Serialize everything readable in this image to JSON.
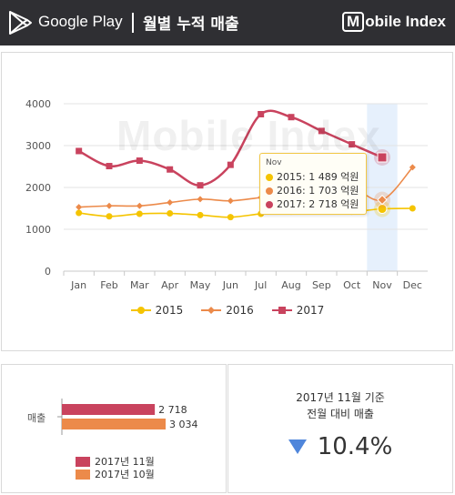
{
  "header": {
    "store": "Google Play",
    "title": "월별 누적 매출",
    "brand": "Mobile Index",
    "brand_boxed": "M",
    "brand_rest": "obile Index"
  },
  "chart_data": [
    {
      "type": "line",
      "title": "",
      "xlabel": "",
      "ylabel": "",
      "categories": [
        "Jan",
        "Feb",
        "Mar",
        "Apr",
        "May",
        "Jun",
        "Jul",
        "Aug",
        "Sep",
        "Oct",
        "Nov",
        "Dec"
      ],
      "ylim": [
        0,
        4000
      ],
      "yticks": [
        0,
        1000,
        2000,
        3000,
        4000
      ],
      "grid": true,
      "legend": "bottom",
      "highlight": "Nov",
      "series": [
        {
          "name": "2015",
          "color": "#f5c400",
          "marker": "circle",
          "values": [
            1390,
            1310,
            1370,
            1380,
            1340,
            1290,
            1370,
            1420,
            1430,
            1420,
            1489,
            1500
          ]
        },
        {
          "name": "2016",
          "color": "#ec8a4a",
          "marker": "diamond",
          "values": [
            1530,
            1560,
            1560,
            1640,
            1720,
            1680,
            1760,
            1840,
            1960,
            1990,
            1703,
            2480
          ]
        },
        {
          "name": "2017",
          "color": "#c9435e",
          "marker": "square",
          "values": [
            2870,
            2510,
            2640,
            2430,
            2050,
            2540,
            3750,
            3680,
            3350,
            3030,
            2718,
            null
          ]
        }
      ],
      "tooltip": {
        "title": "Nov",
        "rows": [
          {
            "label": "2015: 1 489 억원",
            "color": "#f5c400"
          },
          {
            "label": "2016: 1 703 억원",
            "color": "#ec8a4a"
          },
          {
            "label": "2017: 2 718 억원",
            "color": "#c9435e"
          }
        ]
      },
      "watermark": "Mobile Index"
    },
    {
      "type": "bar",
      "orientation": "horizontal",
      "categories": [
        "매출"
      ],
      "series": [
        {
          "name": "2017년 11월",
          "color": "#c9435e",
          "values": [
            2718
          ],
          "value_label": "2 718"
        },
        {
          "name": "2017년 10월",
          "color": "#ec8a4a",
          "values": [
            3034
          ],
          "value_label": "3 034"
        }
      ],
      "xlim": [
        0,
        3034
      ]
    }
  ],
  "stat": {
    "line1": "2017년  11월 기준",
    "line2": "전월 대비 매출",
    "direction": "down",
    "value": "10.4%",
    "arrow_color": "#4f86db"
  }
}
